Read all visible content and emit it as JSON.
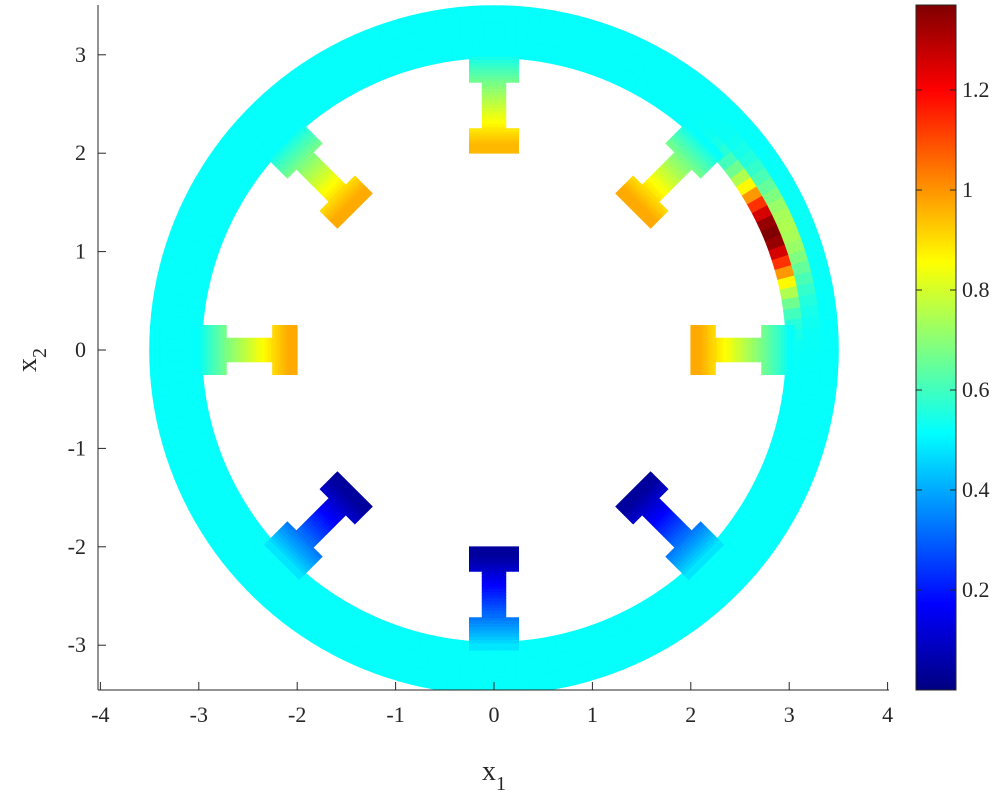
{
  "chart_data": {
    "type": "heatmap",
    "title": "",
    "xlabel": "x",
    "xlabel_sub": "1",
    "ylabel": "x",
    "ylabel_sub": "2",
    "xlim": [
      -4,
      4
    ],
    "ylim": [
      -3.5,
      3.5
    ],
    "x_ticks": [
      -4,
      -3,
      -2,
      -1,
      0,
      1,
      2,
      3,
      4
    ],
    "y_ticks": [
      -3,
      -2,
      -1,
      0,
      1,
      2,
      3
    ],
    "x_tick_labels": [
      "-4",
      "-3",
      "-2",
      "-1",
      "0",
      "1",
      "2",
      "3",
      "4"
    ],
    "y_tick_labels": [
      "-3",
      "-2",
      "-1",
      "0",
      "1",
      "2",
      "3"
    ],
    "grid": false,
    "colormap": "jet",
    "colorbar": {
      "range": [
        0,
        1.37
      ],
      "ticks": [
        0.2,
        0.4,
        0.6,
        0.8,
        1,
        1.2
      ],
      "tick_labels": [
        "0.2",
        "0.4",
        "0.6",
        "0.8",
        "1",
        "1.2"
      ]
    },
    "ring": {
      "outer_radius": 3.5,
      "inner_radius": 2.97,
      "base_value": 0.52,
      "hotspot": {
        "angle_deg": 23,
        "peak_value": 1.37
      }
    },
    "teeth": [
      {
        "angle_deg": 90,
        "root_value": 0.52,
        "tip_value": 0.95
      },
      {
        "angle_deg": 45,
        "root_value": 0.52,
        "tip_value": 0.97
      },
      {
        "angle_deg": 0,
        "root_value": 0.52,
        "tip_value": 0.97
      },
      {
        "angle_deg": 135,
        "root_value": 0.52,
        "tip_value": 0.97
      },
      {
        "angle_deg": 180,
        "root_value": 0.52,
        "tip_value": 0.97
      },
      {
        "angle_deg": 225,
        "root_value": 0.48,
        "tip_value": 0.04
      },
      {
        "angle_deg": 270,
        "root_value": 0.48,
        "tip_value": 0.04
      },
      {
        "angle_deg": 315,
        "root_value": 0.48,
        "tip_value": 0.04
      }
    ]
  }
}
